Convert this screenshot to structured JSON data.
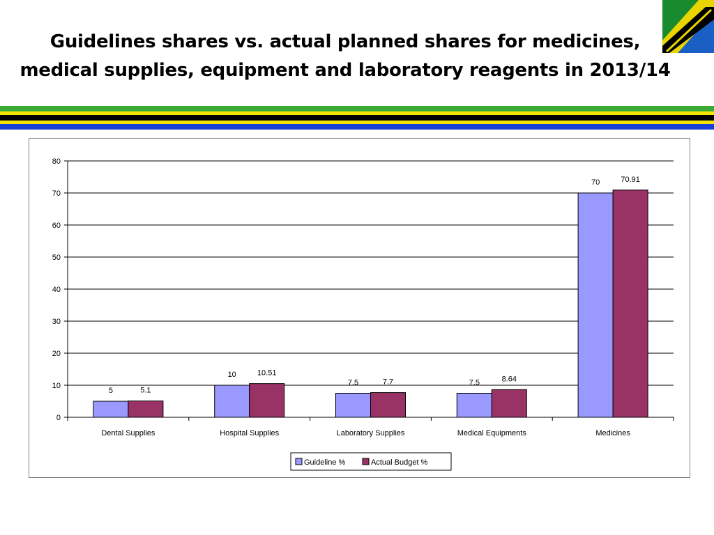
{
  "slide": {
    "title_line1": "Guidelines shares vs. actual planned shares for medicines,",
    "title_line2": "medical supplies, equipment and laboratory reagents in 2013/14"
  },
  "colors": {
    "guideline": "#9999ff",
    "actual": "#993366",
    "stripe_green": "#3aa935",
    "stripe_yellow": "#f5e400",
    "stripe_black": "#000000",
    "stripe_blue": "#1a3fd6"
  },
  "chart_data": {
    "type": "bar",
    "categories": [
      "Dental Supplies",
      "Hospital Supplies",
      "Laboratory Supplies",
      "Medical Equipments",
      "Medicines"
    ],
    "series": [
      {
        "name": "Guideline %",
        "values": [
          5,
          10,
          7.5,
          7.5,
          70
        ],
        "labels": [
          "5",
          "10",
          "7.5",
          "7.5",
          "70"
        ]
      },
      {
        "name": "Actual Budget %",
        "values": [
          5.1,
          10.51,
          7.7,
          8.64,
          70.91
        ],
        "labels": [
          "5.1",
          "10.51",
          "7.7",
          "8.64",
          "70.91"
        ]
      }
    ],
    "ylim": [
      0,
      80
    ],
    "yticks": [
      0,
      10,
      20,
      30,
      40,
      50,
      60,
      70,
      80
    ],
    "grid": true,
    "legend": "bottom-center",
    "title": "",
    "xlabel": "",
    "ylabel": ""
  }
}
